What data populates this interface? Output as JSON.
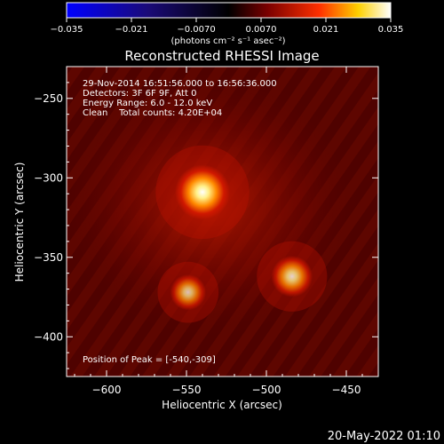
{
  "chart_data": {
    "type": "heatmap",
    "title": "Reconstructed RHESSI Image",
    "xlabel": "Heliocentric X (arcsec)",
    "ylabel": "Heliocentric Y (arcsec)",
    "xlim": [
      -625,
      -430
    ],
    "ylim": [
      -425,
      -230
    ],
    "x_ticks": [
      -600,
      -550,
      -500,
      -450
    ],
    "y_ticks": [
      -250,
      -300,
      -350,
      -400
    ],
    "colorbar": {
      "range": [
        -0.035,
        0.035
      ],
      "ticks": [
        -0.035,
        -0.021,
        -0.007,
        0.007,
        0.021,
        0.035
      ],
      "tick_labels": [
        "−0.035",
        "−0.021",
        "−0.0070",
        "0.0070",
        "0.021",
        "0.035"
      ],
      "unit_label": "(photons cm⁻² s⁻¹ asec⁻²)"
    },
    "annotations": [
      "29-Nov-2014 16:51:56.000 to 16:56:36.000",
      "Detectors: 3F 6F 9F, Att 0",
      "Energy Range: 6.0 - 12.0 keV",
      "Clean    Total counts: 4.20E+04"
    ],
    "peak_label": "Position of Peak = [-540,-309]",
    "sources": [
      {
        "x": -540,
        "y": -309,
        "intensity": 0.035
      },
      {
        "x": -484,
        "y": -362,
        "intensity": 0.02
      },
      {
        "x": -549,
        "y": -372,
        "intensity": 0.014
      }
    ]
  },
  "footer": {
    "timestamp": "20-May-2022 01:10"
  },
  "colors": {
    "background": "#000000",
    "foreground": "#ffffff"
  }
}
